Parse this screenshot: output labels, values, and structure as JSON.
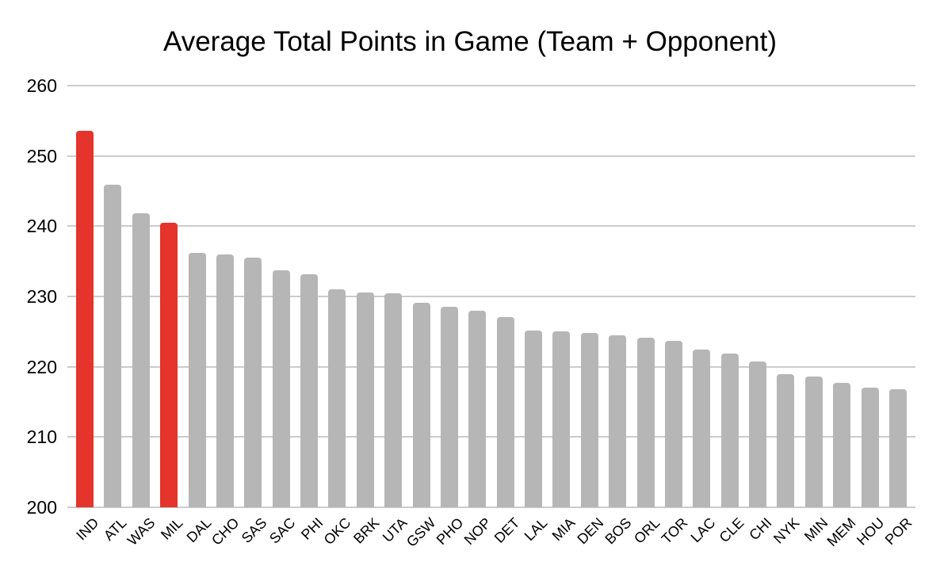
{
  "chart_data": {
    "type": "bar",
    "title": "Average Total Points in Game (Team + Opponent)",
    "xlabel": "",
    "ylabel": "",
    "ylim": [
      200,
      260
    ],
    "yticks": [
      260,
      250,
      240,
      230,
      220,
      210,
      200
    ],
    "grid": true,
    "legend": "none",
    "categories": [
      "IND",
      "ATL",
      "WAS",
      "MIL",
      "DAL",
      "CHO",
      "SAS",
      "SAC",
      "PHI",
      "OKC",
      "BRK",
      "UTA",
      "GSW",
      "PHO",
      "NOP",
      "DET",
      "LAL",
      "MIA",
      "DEN",
      "BOS",
      "ORL",
      "TOR",
      "LAC",
      "CLE",
      "CHI",
      "NYK",
      "MIN",
      "MEM",
      "HOU",
      "POR"
    ],
    "values": [
      253.6,
      245.9,
      241.8,
      240.5,
      236.2,
      236.0,
      235.5,
      233.7,
      233.2,
      231.0,
      230.6,
      230.4,
      229.1,
      228.5,
      228.0,
      227.1,
      225.1,
      225.0,
      224.8,
      224.5,
      224.1,
      223.7,
      222.5,
      221.9,
      220.7,
      218.9,
      218.6,
      217.7,
      217.0,
      216.8
    ],
    "highlighted_categories": [
      "IND",
      "MIL"
    ],
    "colors": {
      "bar_default": "#b6b6b6",
      "bar_highlight": "#e4342b",
      "gridline": "#cccccc",
      "text": "#000000",
      "background": "#ffffff"
    }
  }
}
